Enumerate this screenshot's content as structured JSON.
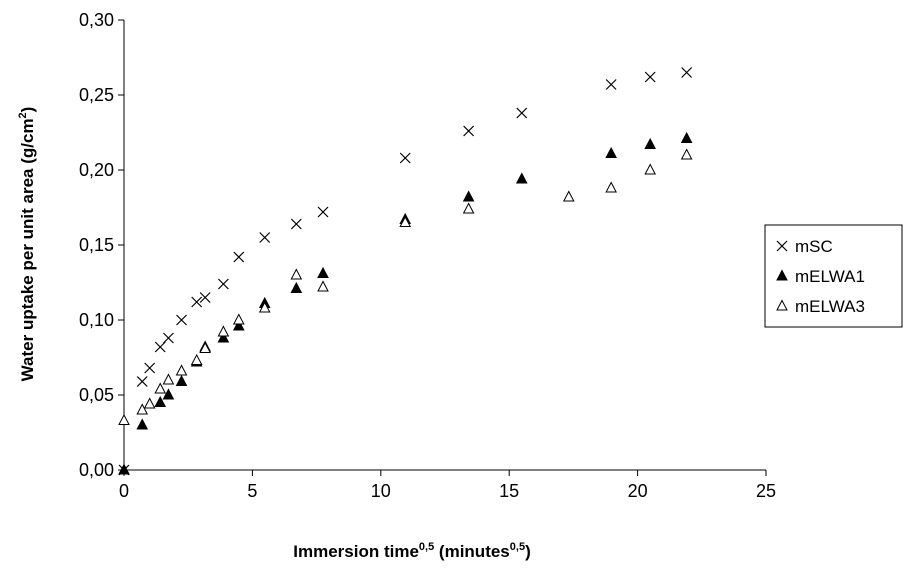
{
  "chart_data": {
    "type": "scatter",
    "xlabel": {
      "main": "Immersion time",
      "main_sup": "0,5",
      "unit_open": " (minutes",
      "unit_sup": "0,5",
      "unit_close": ")"
    },
    "ylabel": {
      "main": "Water uptake per unit area (g/cm",
      "sup": "2",
      "close": ")"
    },
    "xlim": [
      0,
      25
    ],
    "ylim": [
      0,
      0.3
    ],
    "x_ticks": [
      {
        "value": 0,
        "label": "0"
      },
      {
        "value": 5,
        "label": "5"
      },
      {
        "value": 10,
        "label": "10"
      },
      {
        "value": 15,
        "label": "15"
      },
      {
        "value": 20,
        "label": "20"
      },
      {
        "value": 25,
        "label": "25"
      }
    ],
    "y_ticks": [
      {
        "value": 0.0,
        "label": "0,00"
      },
      {
        "value": 0.05,
        "label": "0,05"
      },
      {
        "value": 0.1,
        "label": "0,10"
      },
      {
        "value": 0.15,
        "label": "0,15"
      },
      {
        "value": 0.2,
        "label": "0,20"
      },
      {
        "value": 0.25,
        "label": "0,25"
      },
      {
        "value": 0.3,
        "label": "0,30"
      }
    ],
    "grid": false,
    "legend_position": "right",
    "series": [
      {
        "name": "mSC",
        "marker": "x",
        "color": "#000000",
        "points": [
          [
            0,
            0.0
          ],
          [
            0.71,
            0.059
          ],
          [
            1.0,
            0.068
          ],
          [
            1.41,
            0.082
          ],
          [
            1.73,
            0.088
          ],
          [
            2.24,
            0.1
          ],
          [
            2.83,
            0.112
          ],
          [
            3.16,
            0.115
          ],
          [
            3.87,
            0.124
          ],
          [
            4.47,
            0.142
          ],
          [
            5.48,
            0.155
          ],
          [
            6.71,
            0.164
          ],
          [
            7.75,
            0.172
          ],
          [
            10.95,
            0.208
          ],
          [
            13.42,
            0.226
          ],
          [
            15.49,
            0.238
          ],
          [
            18.97,
            0.257
          ],
          [
            20.49,
            0.262
          ],
          [
            21.91,
            0.265
          ]
        ]
      },
      {
        "name": "mELWA1",
        "marker": "triangle-filled",
        "color": "#000000",
        "points": [
          [
            0,
            0.0
          ],
          [
            0.71,
            0.03
          ],
          [
            1.41,
            0.045
          ],
          [
            1.73,
            0.05
          ],
          [
            2.24,
            0.059
          ],
          [
            2.83,
            0.072
          ],
          [
            3.16,
            0.082
          ],
          [
            3.87,
            0.088
          ],
          [
            4.47,
            0.096
          ],
          [
            5.48,
            0.111
          ],
          [
            6.71,
            0.121
          ],
          [
            7.75,
            0.131
          ],
          [
            10.95,
            0.167
          ],
          [
            13.42,
            0.182
          ],
          [
            15.49,
            0.194
          ],
          [
            18.97,
            0.211
          ],
          [
            20.49,
            0.217
          ],
          [
            21.91,
            0.221
          ]
        ]
      },
      {
        "name": "mELWA3",
        "marker": "triangle-open",
        "color": "#000000",
        "points": [
          [
            0,
            0.033
          ],
          [
            0.71,
            0.04
          ],
          [
            1.0,
            0.044
          ],
          [
            1.41,
            0.054
          ],
          [
            1.73,
            0.06
          ],
          [
            2.24,
            0.066
          ],
          [
            2.83,
            0.073
          ],
          [
            3.16,
            0.081
          ],
          [
            3.87,
            0.092
          ],
          [
            4.47,
            0.1
          ],
          [
            5.48,
            0.108
          ],
          [
            6.71,
            0.13
          ],
          [
            7.75,
            0.122
          ],
          [
            10.95,
            0.165
          ],
          [
            13.42,
            0.174
          ],
          [
            17.32,
            0.182
          ],
          [
            18.97,
            0.188
          ],
          [
            20.49,
            0.2
          ],
          [
            21.91,
            0.21
          ]
        ]
      }
    ]
  }
}
